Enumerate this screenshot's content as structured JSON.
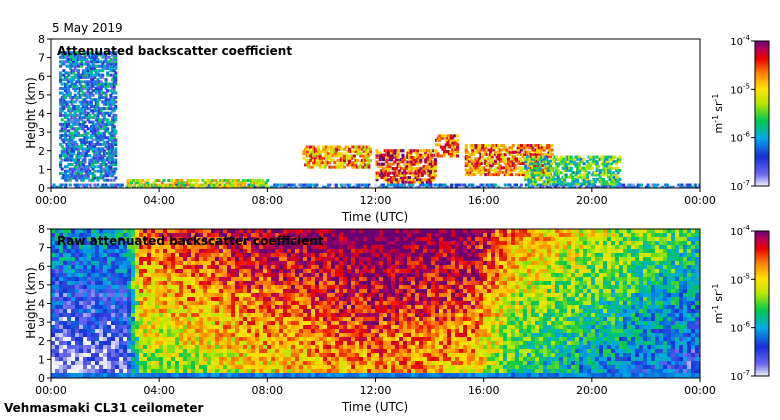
{
  "header": {
    "date": "5 May 2019"
  },
  "footer": {
    "instrument": "Vehmasmaki CL31 ceilometer"
  },
  "chart_data": [
    {
      "type": "heatmap",
      "title": "Attenuated backscatter coefficient",
      "xlabel": "Time (UTC)",
      "ylabel": "Height (km)",
      "xlim": [
        0,
        24
      ],
      "ylim": [
        0,
        8
      ],
      "x_ticks": [
        "00:00",
        "04:00",
        "08:00",
        "12:00",
        "16:00",
        "20:00",
        "00:00"
      ],
      "y_ticks": [
        "0",
        "1",
        "2",
        "3",
        "4",
        "5",
        "6",
        "7",
        "8"
      ],
      "colorbar": {
        "unit": "m",
        "unit_exp": "-1",
        "unit2": "sr",
        "unit2_exp": "-1",
        "ticks": [
          {
            "base": "10",
            "exp": "-4"
          },
          {
            "base": "10",
            "exp": "-5"
          },
          {
            "base": "10",
            "exp": "-6"
          },
          {
            "base": "10",
            "exp": "-7"
          }
        ],
        "log_range": [
          -7,
          -4
        ]
      },
      "features": [
        {
          "t0": 0.0,
          "t1": 24.0,
          "h0": 0.0,
          "h1": 0.3,
          "level": -6.4
        },
        {
          "t0": 2.8,
          "t1": 8.0,
          "h0": 0.0,
          "h1": 0.6,
          "level": -5.2
        },
        {
          "t0": 9.3,
          "t1": 11.8,
          "h0": 1.2,
          "h1": 2.4,
          "level": -4.8
        },
        {
          "t0": 12.0,
          "t1": 14.2,
          "h0": 0.4,
          "h1": 2.2,
          "level": -4.5
        },
        {
          "t0": 14.2,
          "t1": 15.0,
          "h0": 1.8,
          "h1": 3.0,
          "level": -4.6
        },
        {
          "t0": 15.3,
          "t1": 18.5,
          "h0": 0.8,
          "h1": 2.4,
          "level": -4.7
        },
        {
          "t0": 17.5,
          "t1": 21.0,
          "h0": 0.3,
          "h1": 1.8,
          "level": -5.6
        },
        {
          "t0": 0.3,
          "t1": 2.4,
          "h0": 0.5,
          "h1": 7.4,
          "level": -6.2
        }
      ]
    },
    {
      "type": "heatmap",
      "title": "Raw attenuated backscatter coefficient",
      "xlabel": "Time (UTC)",
      "ylabel": "Height (km)",
      "xlim": [
        0,
        24
      ],
      "ylim": [
        0,
        8
      ],
      "x_ticks": [
        "00:00",
        "04:00",
        "08:00",
        "12:00",
        "16:00",
        "20:00",
        "00:00"
      ],
      "y_ticks": [
        "0",
        "1",
        "2",
        "3",
        "4",
        "5",
        "6",
        "7",
        "8"
      ],
      "colorbar": {
        "unit": "m",
        "unit_exp": "-1",
        "unit2": "sr",
        "unit2_exp": "-1",
        "ticks": [
          {
            "base": "10",
            "exp": "-4"
          },
          {
            "base": "10",
            "exp": "-5"
          },
          {
            "base": "10",
            "exp": "-6"
          },
          {
            "base": "10",
            "exp": "-7"
          }
        ],
        "log_range": [
          -7,
          -4
        ]
      },
      "noise_profile": [
        {
          "t": 0.0,
          "level": -6.5
        },
        {
          "t": 2.8,
          "level": -6.4
        },
        {
          "t": 3.3,
          "level": -5.0
        },
        {
          "t": 8.0,
          "level": -4.6
        },
        {
          "t": 12.0,
          "level": -4.3
        },
        {
          "t": 15.5,
          "level": -4.5
        },
        {
          "t": 17.0,
          "level": -5.2
        },
        {
          "t": 20.0,
          "level": -5.6
        },
        {
          "t": 24.0,
          "level": -6.1
        }
      ]
    }
  ]
}
